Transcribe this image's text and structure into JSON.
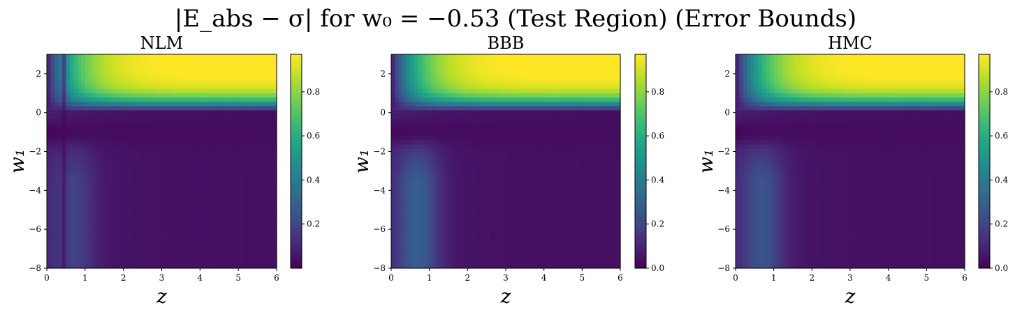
{
  "figure": {
    "title": "|E_abs − σ| for w₀ = −0.53 (Test Region) (Error Bounds)"
  },
  "chart_data": [
    {
      "type": "heatmap",
      "title": "NLM",
      "xlabel": "z",
      "ylabel": "w₁",
      "xlim": [
        0,
        6
      ],
      "ylim": [
        -8,
        3
      ],
      "x_ticks": [
        "0",
        "1",
        "2",
        "3",
        "4",
        "5",
        "6"
      ],
      "y_ticks": [
        "−8",
        "−6",
        "−4",
        "−2",
        "0",
        "2"
      ],
      "colorbar": {
        "range": [
          0.0,
          0.97
        ],
        "ticks": [
          "0.2",
          "0.4",
          "0.6",
          "0.8"
        ]
      },
      "colormap": "viridis",
      "features": {
        "left_band_peak": 0.12,
        "ridge_w1": -1.0,
        "corner_max": 0.97,
        "vertical_stripe_z": 0.45
      }
    },
    {
      "type": "heatmap",
      "title": "BBB",
      "xlabel": "z",
      "ylabel": "w₁",
      "xlim": [
        0,
        6
      ],
      "ylim": [
        -8,
        3
      ],
      "x_ticks": [
        "0",
        "1",
        "2",
        "3",
        "4",
        "5",
        "6"
      ],
      "y_ticks": [
        "−8",
        "−6",
        "−4",
        "−2",
        "0",
        "2"
      ],
      "colorbar": {
        "range": [
          0.0,
          0.97
        ],
        "ticks": [
          "0.0",
          "0.2",
          "0.4",
          "0.6",
          "0.8"
        ]
      },
      "colormap": "viridis",
      "features": {
        "left_band_peak": 0.22,
        "ridge_w1": -1.0,
        "corner_max": 0.97,
        "vertical_stripe_z": 0.0
      }
    },
    {
      "type": "heatmap",
      "title": "HMC",
      "xlabel": "z",
      "ylabel": "w₁",
      "xlim": [
        0,
        6
      ],
      "ylim": [
        -8,
        3
      ],
      "x_ticks": [
        "0",
        "1",
        "2",
        "3",
        "4",
        "5",
        "6"
      ],
      "y_ticks": [
        "−8",
        "−6",
        "−4",
        "−2",
        "0",
        "2"
      ],
      "colorbar": {
        "range": [
          0.0,
          0.97
        ],
        "ticks": [
          "0.0",
          "0.2",
          "0.4",
          "0.6",
          "0.8"
        ]
      },
      "colormap": "viridis",
      "features": {
        "left_band_peak": 0.18,
        "ridge_w1": -1.0,
        "corner_max": 0.97,
        "vertical_stripe_z": 0.0
      }
    }
  ]
}
